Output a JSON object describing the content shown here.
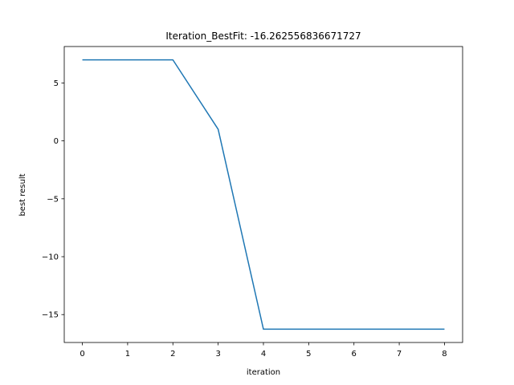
{
  "chart_data": {
    "type": "line",
    "title": "Iteration_BestFit: -16.262556836671727",
    "xlabel": "iteration",
    "ylabel": "best result",
    "x": [
      0,
      1,
      2,
      3,
      4,
      5,
      6,
      7,
      8
    ],
    "xlim": [
      -0.4,
      8.4
    ],
    "ylim": [
      -17.41,
      8.15
    ],
    "xticks": [
      0,
      1,
      2,
      3,
      4,
      5,
      6,
      7,
      8
    ],
    "yticks": [
      5,
      0,
      -5,
      -10,
      -15
    ],
    "ytick_labels": [
      "5",
      "0",
      "−5",
      "−10",
      "−15"
    ],
    "grid": false,
    "series": [
      {
        "values": [
          7,
          7,
          7,
          1,
          -16.262556836671727,
          -16.262556836671727,
          -16.262556836671727,
          -16.262556836671727,
          -16.262556836671727
        ],
        "color": "#1f77b4"
      }
    ]
  }
}
